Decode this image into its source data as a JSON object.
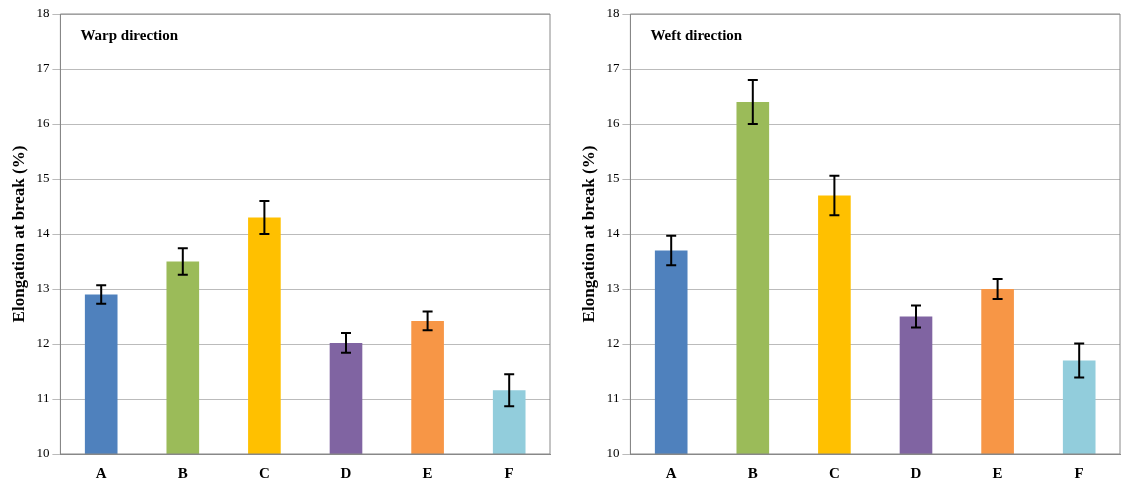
{
  "chart_data": [
    {
      "type": "bar",
      "title": "Warp direction",
      "ylabel": "Elongation at break (%)",
      "categories": [
        "A",
        "B",
        "C",
        "D",
        "E",
        "F"
      ],
      "values": [
        12.9,
        13.5,
        14.3,
        12.02,
        12.42,
        11.16
      ],
      "errors": [
        0.17,
        0.24,
        0.3,
        0.18,
        0.17,
        0.29
      ],
      "colors": [
        "#4f81bd",
        "#9bbb59",
        "#ffc000",
        "#8064a2",
        "#f79646",
        "#92cddc"
      ],
      "ylim": [
        10,
        18
      ],
      "yticks": [
        10,
        11,
        12,
        13,
        14,
        15,
        16,
        17,
        18
      ],
      "grid": "y",
      "legend": false
    },
    {
      "type": "bar",
      "title": "Weft direction",
      "ylabel": "Elongation at break (%)",
      "categories": [
        "A",
        "B",
        "C",
        "D",
        "E",
        "F"
      ],
      "values": [
        13.7,
        16.4,
        14.7,
        12.5,
        13.0,
        11.7
      ],
      "errors": [
        0.27,
        0.4,
        0.36,
        0.2,
        0.18,
        0.31
      ],
      "colors": [
        "#4f81bd",
        "#9bbb59",
        "#ffc000",
        "#8064a2",
        "#f79646",
        "#92cddc"
      ],
      "ylim": [
        10,
        18
      ],
      "yticks": [
        10,
        11,
        12,
        13,
        14,
        15,
        16,
        17,
        18
      ],
      "grid": "y",
      "legend": false
    }
  ]
}
